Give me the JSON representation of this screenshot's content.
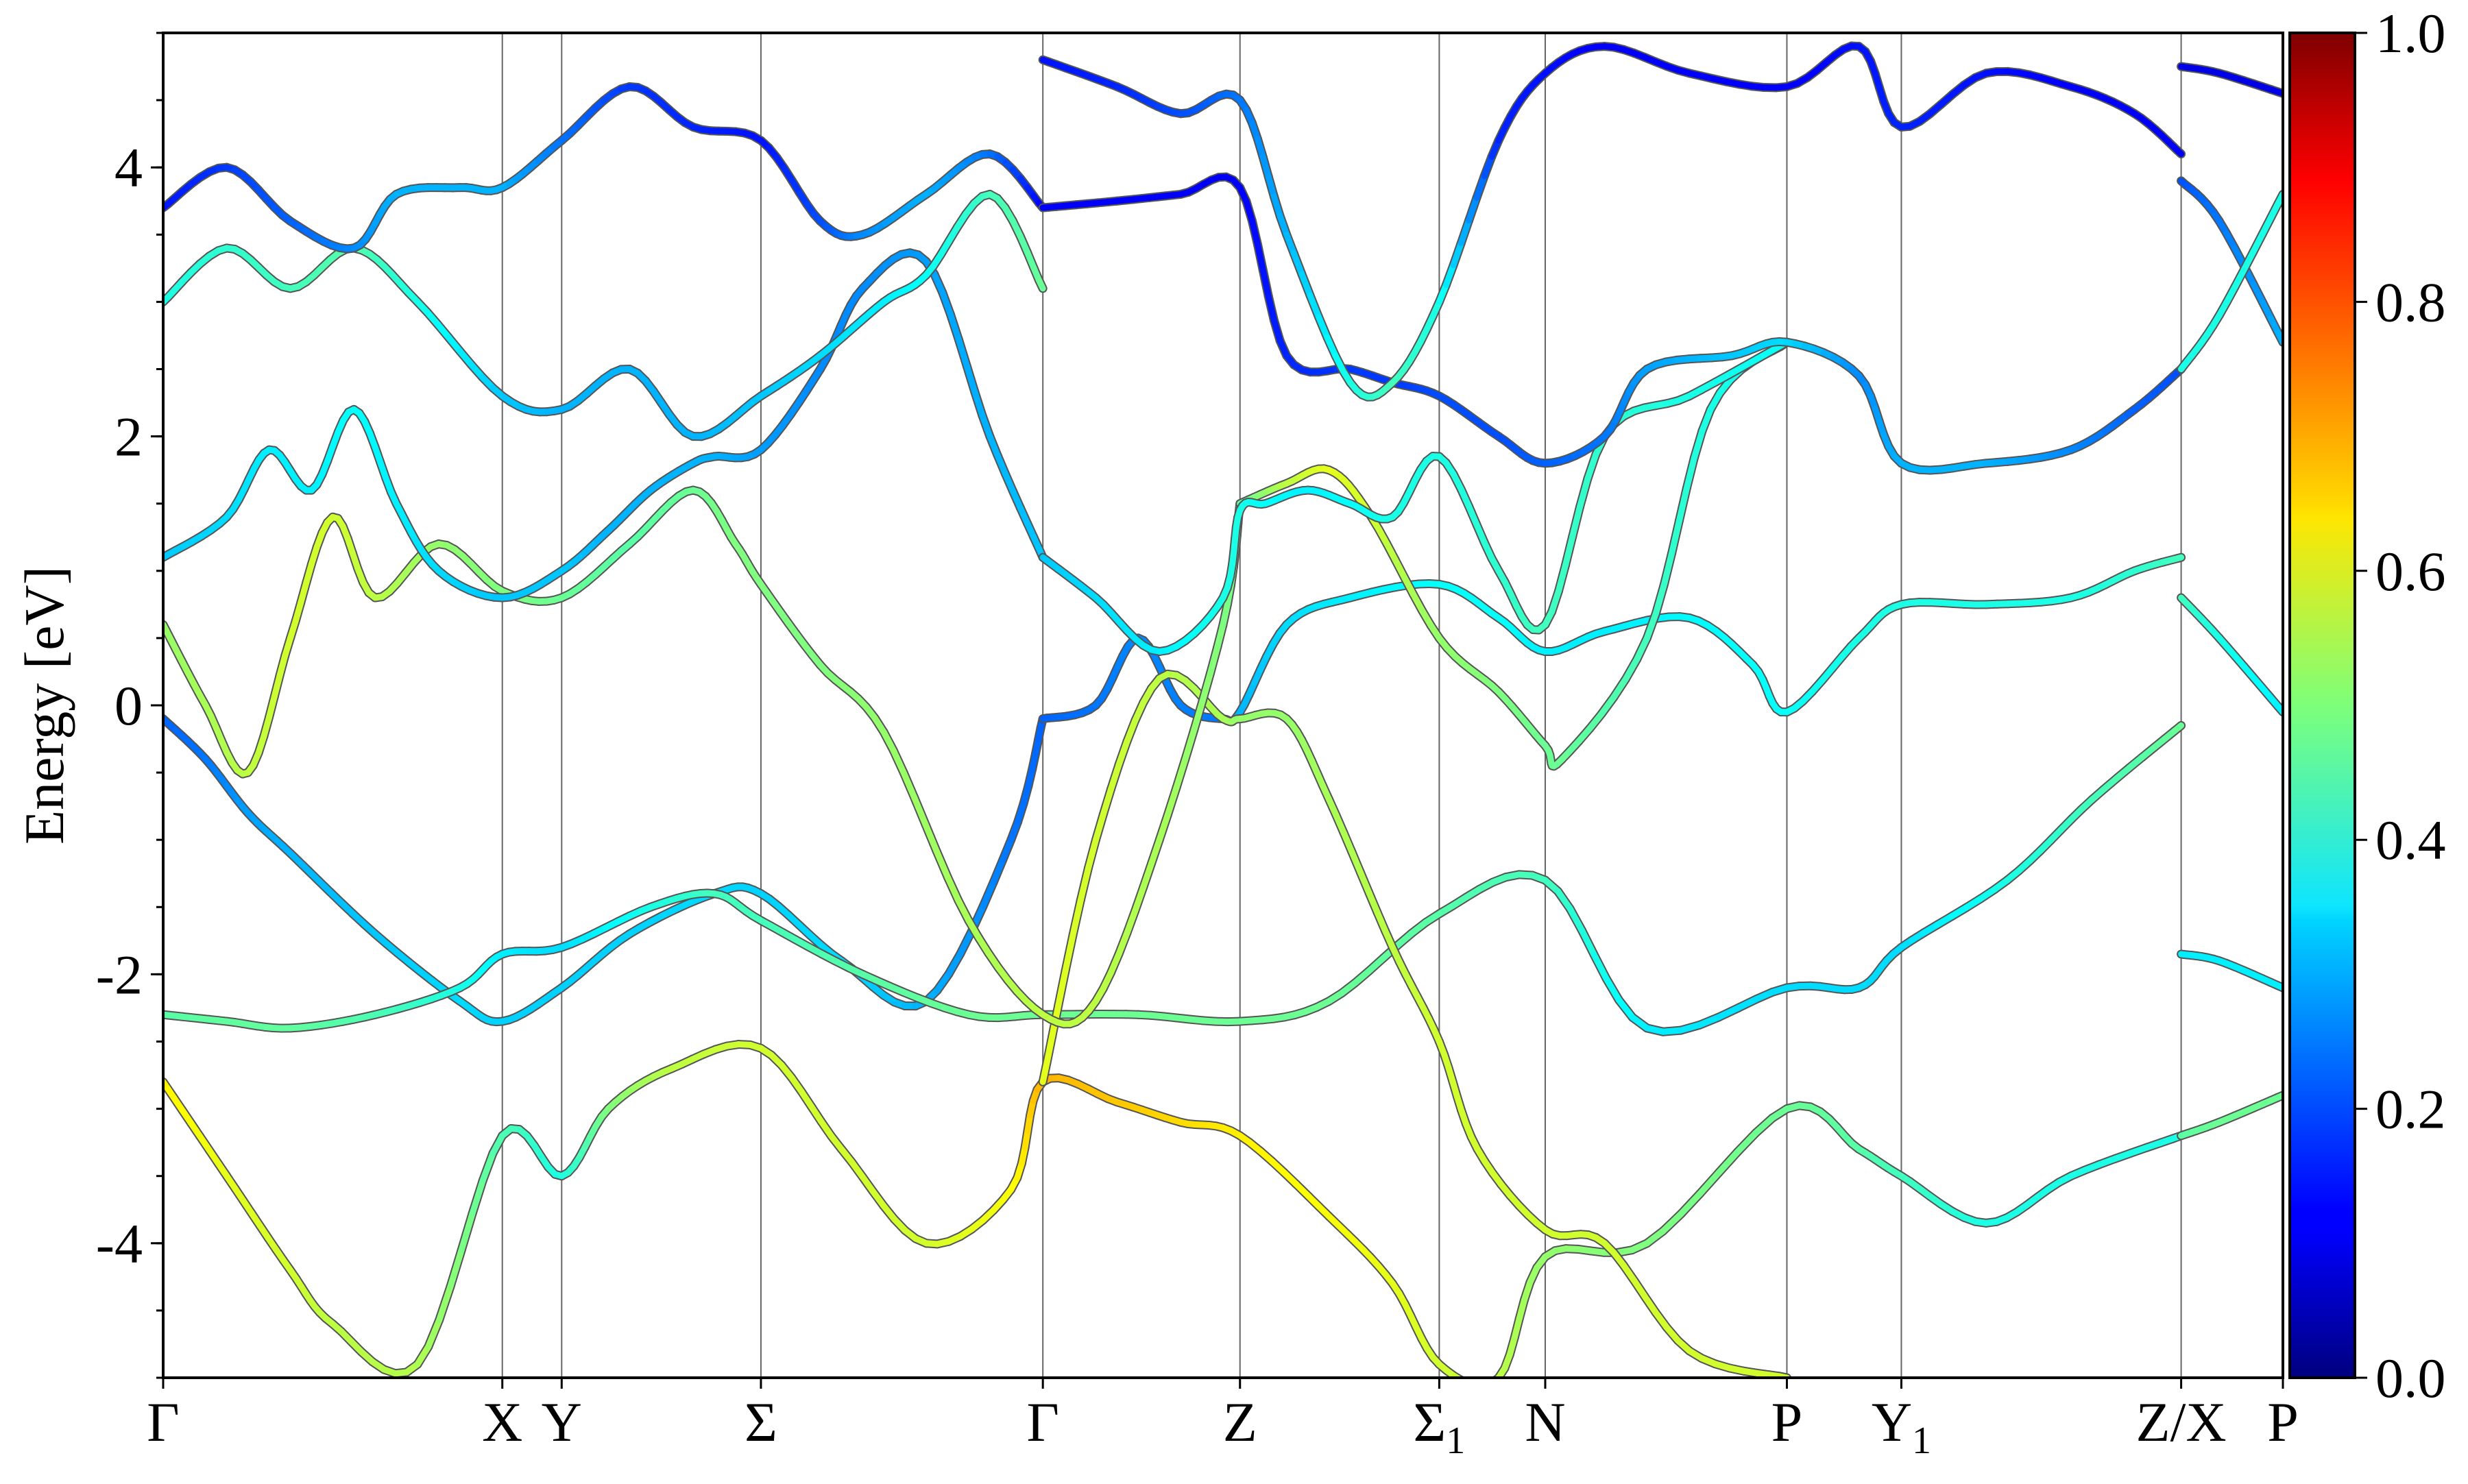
{
  "chart_data": {
    "type": "line",
    "title": "",
    "xlabel": "",
    "ylabel": "Energy [eV]",
    "ylim": [
      -5,
      5
    ],
    "y_ticks": [
      -4,
      -2,
      0,
      2,
      4
    ],
    "y_minor_step": 0.5,
    "x_range": [
      0,
      1
    ],
    "high_symmetry_points": [
      {
        "label": "Γ",
        "sub": "",
        "x": 0.0
      },
      {
        "label": "X",
        "sub": "",
        "x": 0.16
      },
      {
        "label": "Y",
        "sub": "",
        "x": 0.188
      },
      {
        "label": "Σ",
        "sub": "",
        "x": 0.282
      },
      {
        "label": "Γ",
        "sub": "",
        "x": 0.415
      },
      {
        "label": "Z",
        "sub": "",
        "x": 0.508
      },
      {
        "label": "Σ",
        "sub": "1",
        "x": 0.602
      },
      {
        "label": "N",
        "sub": "",
        "x": 0.652
      },
      {
        "label": "P",
        "sub": "",
        "x": 0.766
      },
      {
        "label": "Y",
        "sub": "1",
        "x": 0.82
      },
      {
        "label": "Z/X",
        "sub": "",
        "x": 0.952
      },
      {
        "label": "P",
        "sub": "",
        "x": 1.0
      }
    ],
    "colorbar": {
      "colormap": "jet",
      "range": [
        0,
        1
      ],
      "ticks": [
        "0.0",
        "0.2",
        "0.4",
        "0.6",
        "0.8",
        "1.0"
      ]
    },
    "series": [
      {
        "x": [
          0,
          0.02,
          0.04,
          0.06,
          0.1,
          0.14,
          0.16,
          0.188,
          0.22,
          0.26,
          0.282,
          0.32,
          0.36,
          0.4,
          0.415
        ],
        "y": [
          -0.1,
          -0.4,
          -0.8,
          -1.1,
          -1.7,
          -2.2,
          -2.35,
          -2.1,
          -1.7,
          -1.4,
          -1.4,
          -1.9,
          -2.2,
          -1.0,
          -0.1
        ],
        "c": [
          0.22,
          0.24,
          0.28,
          0.3,
          0.32,
          0.34,
          0.33,
          0.33,
          0.33,
          0.34,
          0.33,
          0.34,
          0.3,
          0.24,
          0.22
        ]
      },
      {
        "x": [
          0.415,
          0.44,
          0.46,
          0.48,
          0.5,
          0.508,
          0.53,
          0.56,
          0.602,
          0.63,
          0.652,
          0.68,
          0.72,
          0.75,
          0.766,
          0.8,
          0.82,
          0.86,
          0.9,
          0.93,
          0.952
        ],
        "y": [
          -0.1,
          -0.0,
          0.5,
          -0.0,
          -0.1,
          -0.05,
          0.6,
          0.8,
          0.9,
          0.65,
          0.4,
          0.55,
          0.65,
          0.3,
          -0.05,
          0.5,
          0.75,
          0.75,
          0.8,
          1.0,
          1.1
        ],
        "c": [
          0.22,
          0.24,
          0.26,
          0.25,
          0.24,
          0.3,
          0.34,
          0.36,
          0.38,
          0.38,
          0.36,
          0.36,
          0.37,
          0.38,
          0.38,
          0.4,
          0.4,
          0.4,
          0.4,
          0.42,
          0.44
        ]
      },
      {
        "x": [
          0,
          0.03,
          0.06,
          0.1,
          0.14,
          0.16,
          0.188,
          0.23,
          0.26,
          0.282,
          0.33,
          0.38,
          0.415,
          0.46,
          0.508,
          0.55,
          0.602,
          0.652,
          0.7,
          0.766,
          0.8,
          0.82,
          0.87,
          0.91,
          0.952
        ],
        "y": [
          -2.3,
          -2.35,
          -2.4,
          -2.3,
          -2.1,
          -1.85,
          -1.8,
          -1.5,
          -1.4,
          -1.6,
          -2.0,
          -2.3,
          -2.3,
          -2.3,
          -2.35,
          -2.2,
          -1.55,
          -1.3,
          -2.4,
          -2.1,
          -2.1,
          -1.8,
          -1.3,
          -0.7,
          -0.15
        ],
        "c": [
          0.46,
          0.47,
          0.47,
          0.45,
          0.4,
          0.36,
          0.34,
          0.4,
          0.44,
          0.44,
          0.46,
          0.48,
          0.48,
          0.48,
          0.48,
          0.48,
          0.46,
          0.44,
          0.36,
          0.34,
          0.34,
          0.34,
          0.4,
          0.44,
          0.48
        ]
      },
      {
        "x": [
          0,
          0.03,
          0.06,
          0.08,
          0.12,
          0.16,
          0.188,
          0.21,
          0.24,
          0.282,
          0.32,
          0.36,
          0.4,
          0.415,
          0.45,
          0.48,
          0.508,
          0.55,
          0.58,
          0.602,
          0.63,
          0.652,
          0.7,
          0.766,
          0.8,
          0.82,
          0.86,
          0.9,
          0.952
        ],
        "y": [
          -2.8,
          -3.5,
          -4.2,
          -4.6,
          -4.9,
          -3.2,
          -3.5,
          -3.0,
          -2.7,
          -2.55,
          -3.3,
          -4.0,
          -3.6,
          -2.8,
          -2.95,
          -3.1,
          -3.2,
          -3.8,
          -4.3,
          -4.9,
          -5.0,
          -4.1,
          -4.0,
          -3.0,
          -3.3,
          -3.5,
          -3.85,
          -3.5,
          -3.2
        ],
        "c": [
          0.64,
          0.6,
          0.58,
          0.56,
          0.55,
          0.45,
          0.4,
          0.5,
          0.56,
          0.58,
          0.58,
          0.58,
          0.62,
          0.7,
          0.68,
          0.66,
          0.64,
          0.62,
          0.6,
          0.58,
          0.56,
          0.52,
          0.5,
          0.48,
          0.46,
          0.44,
          0.4,
          0.4,
          0.4
        ]
      },
      {
        "x": [
          0.415,
          0.44,
          0.47,
          0.5,
          0.508,
          0.53,
          0.55,
          0.58,
          0.602,
          0.62,
          0.652,
          0.68,
          0.72,
          0.766
        ],
        "y": [
          -2.8,
          -1.0,
          0.2,
          -0.1,
          -0.1,
          -0.1,
          -0.7,
          -1.8,
          -2.5,
          -3.3,
          -3.9,
          -4.0,
          -4.8,
          -5.0
        ],
        "c": [
          0.6,
          0.58,
          0.56,
          0.54,
          0.52,
          0.52,
          0.54,
          0.56,
          0.58,
          0.58,
          0.58,
          0.58,
          0.58,
          0.58
        ]
      },
      {
        "x": [
          0,
          0.02,
          0.04,
          0.06,
          0.08,
          0.1,
          0.13,
          0.16,
          0.188,
          0.22,
          0.25,
          0.27,
          0.282,
          0.31,
          0.34,
          0.38,
          0.415,
          0.44,
          0.47,
          0.5,
          0.508
        ],
        "y": [
          0.6,
          0.0,
          -0.5,
          0.5,
          1.4,
          0.8,
          1.2,
          0.85,
          0.8,
          1.2,
          1.6,
          1.2,
          0.9,
          0.3,
          -0.2,
          -1.6,
          -2.3,
          -2.2,
          -1.0,
          0.6,
          1.5
        ],
        "c": [
          0.52,
          0.54,
          0.56,
          0.58,
          0.58,
          0.56,
          0.52,
          0.5,
          0.48,
          0.46,
          0.48,
          0.5,
          0.5,
          0.5,
          0.52,
          0.54,
          0.56,
          0.56,
          0.54,
          0.5,
          0.46
        ]
      },
      {
        "x": [
          0.508,
          0.53,
          0.55,
          0.57,
          0.602,
          0.63,
          0.652,
          0.66,
          0.7,
          0.73,
          0.766
        ],
        "y": [
          1.5,
          1.65,
          1.75,
          1.4,
          0.5,
          0.1,
          -0.3,
          -0.4,
          0.5,
          2.2,
          2.7
        ],
        "c": [
          0.46,
          0.56,
          0.6,
          0.58,
          0.52,
          0.5,
          0.48,
          0.48,
          0.44,
          0.4,
          0.38
        ]
      },
      {
        "x": [
          0,
          0.03,
          0.05,
          0.07,
          0.09,
          0.11,
          0.13,
          0.16,
          0.188,
          0.21,
          0.23,
          0.25,
          0.26,
          0.282,
          0.31,
          0.33,
          0.36,
          0.39,
          0.415
        ],
        "y": [
          1.1,
          1.4,
          1.9,
          1.6,
          2.2,
          1.5,
          1.0,
          0.8,
          1.0,
          1.3,
          1.6,
          1.8,
          1.85,
          1.9,
          2.5,
          3.1,
          3.3,
          2.0,
          1.1
        ],
        "c": [
          0.32,
          0.34,
          0.36,
          0.36,
          0.38,
          0.36,
          0.34,
          0.32,
          0.32,
          0.3,
          0.3,
          0.3,
          0.3,
          0.28,
          0.26,
          0.26,
          0.28,
          0.3,
          0.32
        ]
      },
      {
        "x": [
          0.415,
          0.44,
          0.47,
          0.5,
          0.508,
          0.52,
          0.54,
          0.56,
          0.58,
          0.602,
          0.63,
          0.652,
          0.68,
          0.72,
          0.766
        ],
        "y": [
          1.1,
          0.8,
          0.4,
          0.8,
          1.45,
          1.5,
          1.6,
          1.5,
          1.4,
          1.85,
          1.0,
          0.6,
          2.0,
          2.3,
          2.7
        ],
        "c": [
          0.32,
          0.34,
          0.36,
          0.4,
          0.4,
          0.38,
          0.36,
          0.38,
          0.4,
          0.4,
          0.42,
          0.44,
          0.42,
          0.4,
          0.38
        ]
      },
      {
        "x": [
          0,
          0.03,
          0.06,
          0.09,
          0.12,
          0.16,
          0.188,
          0.22,
          0.25,
          0.282,
          0.31,
          0.34,
          0.36,
          0.39,
          0.415
        ],
        "y": [
          3.0,
          3.4,
          3.1,
          3.4,
          3.0,
          2.3,
          2.2,
          2.5,
          2.0,
          2.3,
          2.6,
          3.0,
          3.2,
          3.8,
          3.1
        ],
        "c": [
          0.4,
          0.42,
          0.44,
          0.46,
          0.4,
          0.32,
          0.3,
          0.3,
          0.3,
          0.32,
          0.34,
          0.36,
          0.38,
          0.44,
          0.48
        ]
      },
      {
        "x": [
          0,
          0.03,
          0.06,
          0.09,
          0.11,
          0.14,
          0.16,
          0.188,
          0.22,
          0.25,
          0.282,
          0.31,
          0.33,
          0.36,
          0.39,
          0.415
        ],
        "y": [
          3.7,
          4.0,
          3.6,
          3.4,
          3.8,
          3.85,
          3.85,
          4.2,
          4.6,
          4.3,
          4.2,
          3.6,
          3.5,
          3.8,
          4.1,
          3.7
        ],
        "c": [
          0.14,
          0.18,
          0.22,
          0.26,
          0.3,
          0.3,
          0.3,
          0.24,
          0.18,
          0.16,
          0.14,
          0.2,
          0.26,
          0.3,
          0.24,
          0.12
        ]
      },
      {
        "x": [
          0.415,
          0.45,
          0.48,
          0.508,
          0.53,
          0.56,
          0.58,
          0.602,
          0.63,
          0.652,
          0.68,
          0.7,
          0.74,
          0.766,
          0.8,
          0.82,
          0.86,
          0.9,
          0.93,
          0.952
        ],
        "y": [
          3.7,
          3.75,
          3.8,
          3.85,
          2.6,
          2.5,
          2.4,
          2.3,
          2.0,
          1.8,
          2.0,
          2.5,
          2.6,
          2.7,
          2.45,
          1.8,
          1.8,
          1.9,
          2.2,
          2.5
        ],
        "c": [
          0.12,
          0.12,
          0.12,
          0.12,
          0.16,
          0.18,
          0.18,
          0.2,
          0.2,
          0.22,
          0.24,
          0.28,
          0.32,
          0.34,
          0.26,
          0.3,
          0.3,
          0.26,
          0.22,
          0.2
        ]
      },
      {
        "x": [
          0.415,
          0.45,
          0.48,
          0.508,
          0.53,
          0.56,
          0.58,
          0.602,
          0.63,
          0.652,
          0.68,
          0.72,
          0.766,
          0.8,
          0.82,
          0.86,
          0.9,
          0.93,
          0.952
        ],
        "y": [
          4.8,
          4.6,
          4.4,
          4.5,
          3.5,
          2.4,
          2.4,
          3.0,
          4.2,
          4.7,
          4.9,
          4.7,
          4.6,
          4.9,
          4.3,
          4.7,
          4.6,
          4.4,
          4.1
        ],
        "c": [
          0.14,
          0.16,
          0.2,
          0.24,
          0.3,
          0.4,
          0.44,
          0.4,
          0.16,
          0.14,
          0.12,
          0.12,
          0.12,
          0.14,
          0.16,
          0.14,
          0.12,
          0.12,
          0.12
        ]
      },
      {
        "x": [
          0.952,
          0.97,
          1.0
        ],
        "y": [
          4.75,
          4.7,
          4.55
        ],
        "c": [
          0.1,
          0.1,
          0.1
        ]
      },
      {
        "x": [
          0.952,
          0.97,
          1.0
        ],
        "y": [
          3.9,
          3.6,
          2.7
        ],
        "c": [
          0.2,
          0.24,
          0.3
        ]
      },
      {
        "x": [
          0.952,
          0.97,
          1.0
        ],
        "y": [
          0.8,
          0.5,
          -0.05
        ],
        "c": [
          0.44,
          0.4,
          0.36
        ]
      },
      {
        "x": [
          0.952,
          0.97,
          1.0
        ],
        "y": [
          -1.85,
          -1.9,
          -2.1
        ],
        "c": [
          0.36,
          0.36,
          0.36
        ]
      },
      {
        "x": [
          0.952,
          0.97,
          1.0
        ],
        "y": [
          -3.2,
          -3.1,
          -2.9
        ],
        "c": [
          0.46,
          0.48,
          0.48
        ]
      },
      {
        "x": [
          0.952,
          0.97,
          1.0
        ],
        "y": [
          2.5,
          2.9,
          3.8
        ],
        "c": [
          0.4,
          0.4,
          0.4
        ]
      }
    ]
  }
}
